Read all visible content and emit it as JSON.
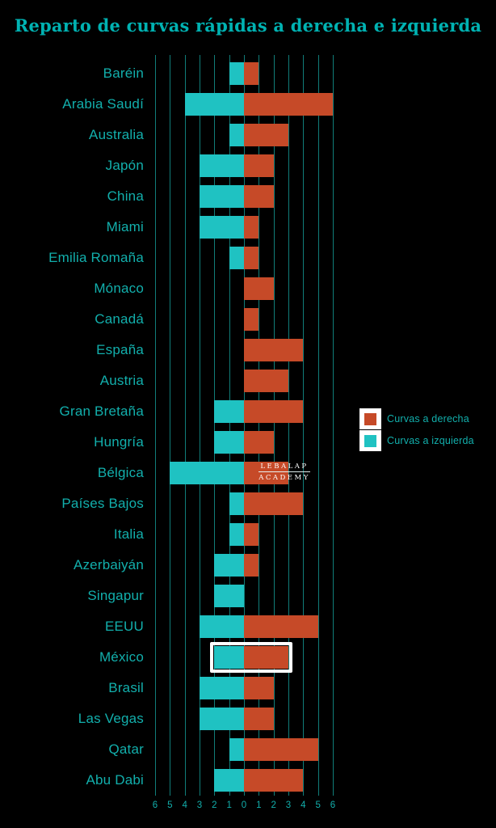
{
  "title": "Reparto de curvas rápidas a derecha e izquierda",
  "watermark": {
    "line1": "LEBALAP",
    "line2": "ACADEMY"
  },
  "legend": [
    {
      "label": "Curvas a derecha",
      "color": "#C64A28"
    },
    {
      "label": "Curvas a izquierda",
      "color": "#1FC2C2"
    }
  ],
  "colors": {
    "background": "#000000",
    "bar_right_red": "#C64A28",
    "bar_left_teal": "#1FC2C2",
    "accent_teal_text": "#12AFAC",
    "title_teal": "#00B2B2",
    "gridline_teal": "#117D79",
    "highlight_white": "#FFFFFF"
  },
  "chart_data": {
    "type": "bar",
    "orientation": "horizontal-diverging",
    "title": "Reparto de curvas rápidas a derecha e izquierda",
    "categories": [
      "Baréin",
      "Arabia Saudí",
      "Australia",
      "Japón",
      "China",
      "Miami",
      "Emilia Romaña",
      "Mónaco",
      "Canadá",
      "España",
      "Austria",
      "Gran Bretaña",
      "Hungría",
      "Bélgica",
      "Países Bajos",
      "Italia",
      "Azerbaiyán",
      "Singapur",
      "EEUU",
      "México",
      "Brasil",
      "Las Vegas",
      "Qatar",
      "Abu Dabi"
    ],
    "series": [
      {
        "name": "Curvas a izquierda",
        "direction": "left",
        "color": "#1FC2C2",
        "values": [
          1,
          4,
          1,
          3,
          3,
          3,
          1,
          0,
          0,
          0,
          0,
          2,
          2,
          5,
          1,
          1,
          2,
          2,
          3,
          2,
          3,
          3,
          1,
          2
        ]
      },
      {
        "name": "Curvas a derecha",
        "direction": "right",
        "color": "#C64A28",
        "values": [
          1,
          6,
          3,
          2,
          2,
          1,
          1,
          2,
          1,
          4,
          3,
          4,
          2,
          3,
          4,
          1,
          1,
          0,
          5,
          3,
          2,
          2,
          5,
          4
        ]
      }
    ],
    "x_ticks": [
      "6",
      "5",
      "4",
      "3",
      "2",
      "1",
      "0",
      "1",
      "2",
      "3",
      "4",
      "5",
      "6"
    ],
    "xlim": [
      -6,
      6
    ],
    "grid": true,
    "legend_position": "right-middle",
    "highlighted_category": "México"
  }
}
